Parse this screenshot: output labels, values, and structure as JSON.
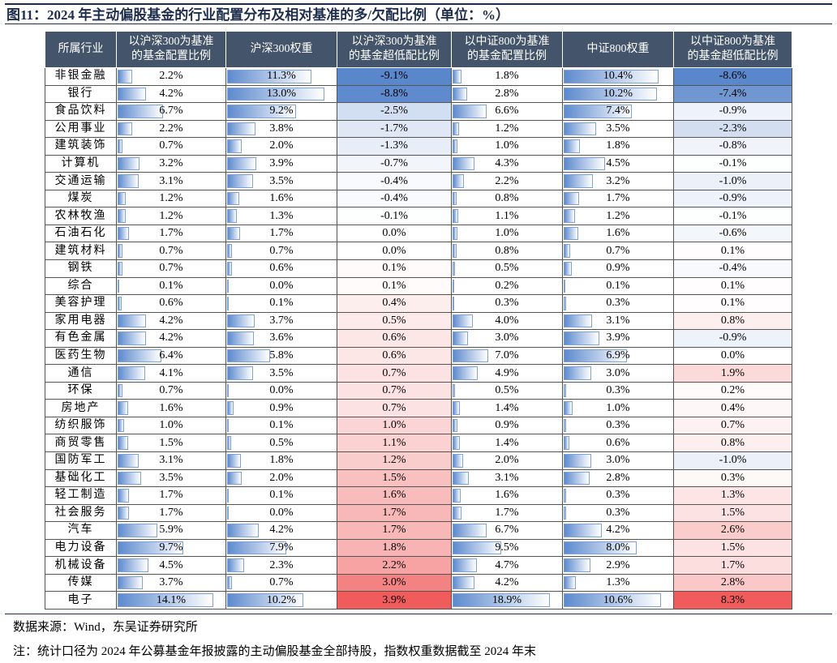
{
  "title": "图11：2024 年主动偏股基金的行业配置分布及相对基准的多/欠配比例（单位：%）",
  "table": {
    "header": [
      "所属行业",
      "以沪深300为基准\n的基金配置比例",
      "沪深300权重",
      "以沪深300为基准\n的基金超低配比例",
      "以中证800为基准\n的基金配置比例",
      "中证800权重",
      "以中证800为基准\n的基金超低配比例"
    ],
    "rows": [
      [
        "非银金融",
        "2.2%",
        "11.3%",
        "-9.1%",
        "1.8%",
        "10.4%",
        "-8.6%"
      ],
      [
        "银行",
        "4.2%",
        "13.0%",
        "-8.8%",
        "2.8%",
        "10.2%",
        "-7.4%"
      ],
      [
        "食品饮料",
        "6.7%",
        "9.2%",
        "-2.5%",
        "6.6%",
        "7.4%",
        "-0.9%"
      ],
      [
        "公用事业",
        "2.2%",
        "3.8%",
        "-1.7%",
        "1.2%",
        "3.5%",
        "-2.3%"
      ],
      [
        "建筑装饰",
        "0.7%",
        "2.0%",
        "-1.3%",
        "1.0%",
        "1.8%",
        "-0.8%"
      ],
      [
        "计算机",
        "3.2%",
        "3.9%",
        "-0.7%",
        "4.3%",
        "4.5%",
        "-0.1%"
      ],
      [
        "交通运输",
        "3.1%",
        "3.5%",
        "-0.4%",
        "2.2%",
        "3.2%",
        "-1.0%"
      ],
      [
        "煤炭",
        "1.2%",
        "1.6%",
        "-0.4%",
        "0.8%",
        "1.7%",
        "-0.9%"
      ],
      [
        "农林牧渔",
        "1.2%",
        "1.3%",
        "-0.1%",
        "1.1%",
        "1.2%",
        "-0.1%"
      ],
      [
        "石油石化",
        "1.7%",
        "1.7%",
        "0.0%",
        "1.0%",
        "1.6%",
        "-0.6%"
      ],
      [
        "建筑材料",
        "0.7%",
        "0.7%",
        "0.0%",
        "0.8%",
        "0.7%",
        "0.1%"
      ],
      [
        "钢铁",
        "0.7%",
        "0.6%",
        "0.1%",
        "0.5%",
        "0.9%",
        "-0.4%"
      ],
      [
        "综合",
        "0.1%",
        "0.0%",
        "0.1%",
        "0.2%",
        "0.1%",
        "0.1%"
      ],
      [
        "美容护理",
        "0.6%",
        "0.1%",
        "0.4%",
        "0.3%",
        "0.3%",
        "0.1%"
      ],
      [
        "家用电器",
        "4.2%",
        "3.7%",
        "0.5%",
        "4.0%",
        "3.1%",
        "0.8%"
      ],
      [
        "有色金属",
        "4.2%",
        "3.6%",
        "0.6%",
        "3.0%",
        "3.9%",
        "-0.9%"
      ],
      [
        "医药生物",
        "6.4%",
        "5.8%",
        "0.6%",
        "7.0%",
        "6.9%",
        "0.0%"
      ],
      [
        "通信",
        "4.1%",
        "3.5%",
        "0.7%",
        "4.9%",
        "3.0%",
        "1.9%"
      ],
      [
        "环保",
        "0.7%",
        "0.0%",
        "0.7%",
        "0.5%",
        "0.3%",
        "0.2%"
      ],
      [
        "房地产",
        "1.6%",
        "0.9%",
        "0.7%",
        "1.4%",
        "1.0%",
        "0.4%"
      ],
      [
        "纺织服饰",
        "1.0%",
        "0.1%",
        "1.0%",
        "0.9%",
        "0.3%",
        "0.7%"
      ],
      [
        "商贸零售",
        "1.5%",
        "0.5%",
        "1.1%",
        "1.4%",
        "0.6%",
        "0.8%"
      ],
      [
        "国防军工",
        "3.1%",
        "1.8%",
        "1.2%",
        "2.0%",
        "3.0%",
        "-1.0%"
      ],
      [
        "基础化工",
        "3.5%",
        "2.0%",
        "1.5%",
        "3.1%",
        "2.8%",
        "0.3%"
      ],
      [
        "轻工制造",
        "1.7%",
        "0.1%",
        "1.6%",
        "1.6%",
        "0.3%",
        "1.3%"
      ],
      [
        "社会服务",
        "1.7%",
        "0.0%",
        "1.7%",
        "1.7%",
        "0.3%",
        "1.5%"
      ],
      [
        "汽车",
        "5.9%",
        "4.2%",
        "1.7%",
        "6.7%",
        "4.2%",
        "2.6%"
      ],
      [
        "电力设备",
        "9.7%",
        "7.9%",
        "1.8%",
        "9.5%",
        "8.0%",
        "1.5%"
      ],
      [
        "机械设备",
        "4.5%",
        "2.3%",
        "2.2%",
        "4.7%",
        "2.9%",
        "1.7%"
      ],
      [
        "传媒",
        "3.7%",
        "0.7%",
        "3.0%",
        "4.2%",
        "1.3%",
        "2.8%"
      ],
      [
        "电子",
        "14.1%",
        "10.2%",
        "3.9%",
        "18.9%",
        "10.6%",
        "8.3%"
      ]
    ]
  },
  "notes": [
    "数据来源：Wind，东吴证券研究所",
    "注：统计口径为 2024 年公募基金年报披露的主动偏股基金全部持股，指数权重数据截至 2024 年末"
  ]
}
